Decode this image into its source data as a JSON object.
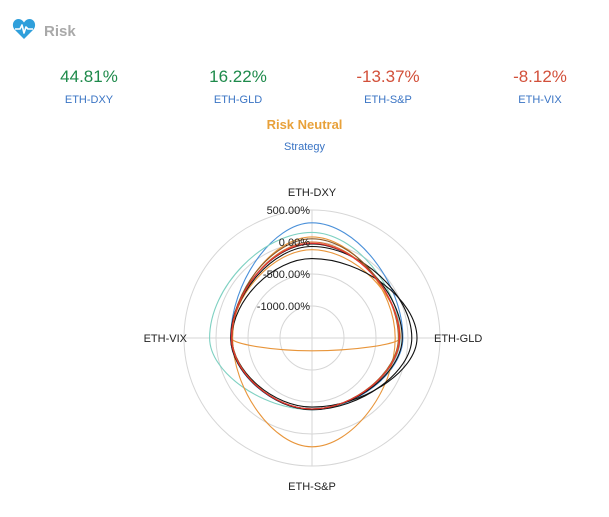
{
  "header": {
    "title": "Risk",
    "icon": "heartbeat-icon",
    "icon_color": "#2f9fdb"
  },
  "metrics": [
    {
      "value": "44.81%",
      "label": "ETH-DXY",
      "sign": "pos"
    },
    {
      "value": "16.22%",
      "label": "ETH-GLD",
      "sign": "pos"
    },
    {
      "value": "-13.37%",
      "label": "ETH-S&P",
      "sign": "neg"
    },
    {
      "value": "-8.12%",
      "label": "ETH-VIX",
      "sign": "neg"
    }
  ],
  "strategy": {
    "name": "Risk Neutral",
    "caption": "Strategy"
  },
  "chart_data": {
    "type": "radar",
    "axes": [
      "ETH-DXY",
      "ETH-GLD",
      "ETH-S&P",
      "ETH-VIX"
    ],
    "radial_ticks": [
      "500.00%",
      "0.00%",
      "-500.00%",
      "-1000.00%"
    ],
    "radial_range": [
      -1500,
      500
    ],
    "grid": true,
    "series": [
      {
        "color": "#4a90d9",
        "values": [
          300,
          -80,
          -380,
          -230
        ]
      },
      {
        "color": "#7fd1c2",
        "values": [
          150,
          -120,
          -380,
          100
        ]
      },
      {
        "color": "#e8953a",
        "values": [
          80,
          -200,
          200,
          -260
        ]
      },
      {
        "color": "#e8953a",
        "values": [
          -120,
          -120,
          -1300,
          -240
        ]
      },
      {
        "color": "#111111",
        "values": [
          -70,
          60,
          -380,
          -240
        ]
      },
      {
        "color": "#111111",
        "values": [
          -260,
          140,
          -420,
          -250
        ]
      },
      {
        "color": "#111111",
        "values": [
          -30,
          -90,
          -390,
          -230
        ]
      },
      {
        "color": "#8b5a2b",
        "values": [
          50,
          -150,
          -390,
          -240
        ]
      },
      {
        "color": "#d96a2a",
        "values": [
          0,
          -140,
          -390,
          -250
        ]
      },
      {
        "color": "#e03030",
        "values": [
          -20,
          -130,
          -390,
          -240
        ]
      }
    ]
  }
}
